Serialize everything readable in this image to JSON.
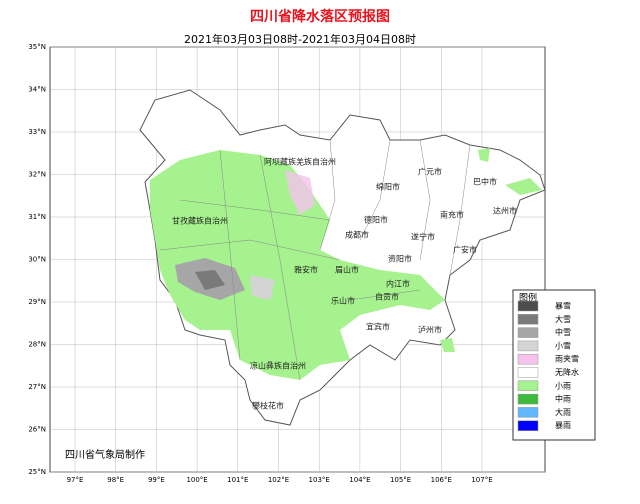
{
  "header": {
    "title": "四川省降水落区预报图",
    "subtitle": "2021年03月03日08时-2021年03月04日08时"
  },
  "lat_ticks": [
    {
      "value": 35,
      "label": "35°N"
    },
    {
      "value": 34,
      "label": "34°N"
    },
    {
      "value": 33,
      "label": "33°N"
    },
    {
      "value": 32,
      "label": "32°N"
    },
    {
      "value": 31,
      "label": "31°N"
    },
    {
      "value": 30,
      "label": "30°N"
    },
    {
      "value": 29,
      "label": "29°N"
    },
    {
      "value": 28,
      "label": "28°N"
    },
    {
      "value": 27,
      "label": "27°N"
    },
    {
      "value": 26,
      "label": "26°N"
    },
    {
      "value": 25,
      "label": "25°N"
    }
  ],
  "lon_ticks": [
    {
      "value": 97,
      "label": "97°E"
    },
    {
      "value": 98,
      "label": "98°E"
    },
    {
      "value": 99,
      "label": "99°E"
    },
    {
      "value": 100,
      "label": "100°E"
    },
    {
      "value": 101,
      "label": "101°E"
    },
    {
      "value": 102,
      "label": "102°E"
    },
    {
      "value": 103,
      "label": "103°E"
    },
    {
      "value": 104,
      "label": "104°E"
    },
    {
      "value": 105,
      "label": "105°E"
    },
    {
      "value": 106,
      "label": "106°E"
    },
    {
      "value": 107,
      "label": "107°E"
    }
  ],
  "places": [
    "阿坝藏族羌族自治州",
    "甘孜藏族自治州",
    "广元市",
    "巴中市",
    "绵阳市",
    "达州市",
    "南充市",
    "德阳市",
    "成都市",
    "遂宁市",
    "广安市",
    "资阳市",
    "雅安市",
    "眉山市",
    "内江市",
    "乐山市",
    "自贡市",
    "宜宾市",
    "泸州市",
    "凉山彝族自治州",
    "攀枝花市"
  ],
  "legend": {
    "title": "图例",
    "items": [
      {
        "label": "暴雪",
        "color": "#4d4d4d"
      },
      {
        "label": "大雪",
        "color": "#7a7a7a"
      },
      {
        "label": "中雪",
        "color": "#a6a6a6"
      },
      {
        "label": "小雪",
        "color": "#d4d4d4"
      },
      {
        "label": "雨夹雪",
        "color": "#f5c2ee"
      },
      {
        "label": "无降水",
        "color": "#ffffff"
      },
      {
        "label": "小雨",
        "color": "#a6f28f"
      },
      {
        "label": "中雨",
        "color": "#3dba3d"
      },
      {
        "label": "大雨",
        "color": "#61b8ff"
      },
      {
        "label": "暴雨",
        "color": "#0000fe"
      }
    ]
  },
  "credit": "四川省气象局制作"
}
